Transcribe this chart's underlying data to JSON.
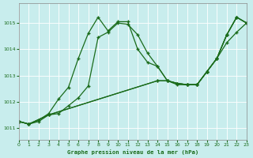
{
  "title": "Graphe pression niveau de la mer (hPa)",
  "bg_color": "#c8eded",
  "line_color": "#1a6b1a",
  "grid_color": "#b8d8d8",
  "xlim": [
    0,
    23
  ],
  "ylim": [
    1010.55,
    1015.75
  ],
  "yticks": [
    1011,
    1012,
    1013,
    1014,
    1015
  ],
  "xticks": [
    0,
    1,
    2,
    3,
    4,
    5,
    6,
    7,
    8,
    9,
    10,
    11,
    12,
    13,
    14,
    15,
    16,
    17,
    18,
    19,
    20,
    21,
    22,
    23
  ],
  "series": [
    {
      "x": [
        0,
        1,
        2,
        3,
        4,
        5,
        6,
        7,
        8,
        9,
        10,
        11,
        12,
        13,
        14,
        15,
        16,
        17,
        18,
        19,
        20,
        21,
        22,
        23
      ],
      "y": [
        1011.25,
        1011.15,
        1011.3,
        1011.55,
        1012.1,
        1012.55,
        1013.65,
        1014.6,
        1015.22,
        1014.7,
        1015.05,
        1015.05,
        1014.0,
        1013.5,
        1013.35,
        1012.8,
        1012.7,
        1012.65,
        1012.65,
        1013.15,
        1013.65,
        1014.55,
        1015.22,
        1015.0
      ]
    },
    {
      "x": [
        0,
        1,
        2,
        3,
        4,
        5,
        6,
        7,
        8,
        9,
        10,
        11,
        12,
        13,
        14,
        15,
        16,
        17,
        18,
        19,
        20,
        21,
        22,
        23
      ],
      "y": [
        1011.25,
        1011.15,
        1011.25,
        1011.5,
        1011.55,
        1011.85,
        1012.15,
        1012.6,
        1014.45,
        1014.65,
        1015.0,
        1014.95,
        1014.55,
        1013.85,
        1013.35,
        1012.8,
        1012.7,
        1012.65,
        1012.65,
        1013.15,
        1013.65,
        1014.55,
        1015.22,
        1015.0
      ]
    },
    {
      "x": [
        0,
        1,
        3,
        14,
        15,
        16,
        17,
        18,
        19,
        20,
        21,
        22,
        23
      ],
      "y": [
        1011.25,
        1011.15,
        1011.5,
        1012.8,
        1012.8,
        1012.7,
        1012.65,
        1012.65,
        1013.15,
        1013.65,
        1014.55,
        1015.22,
        1015.0
      ]
    },
    {
      "x": [
        0,
        1,
        3,
        14,
        15,
        16,
        17,
        18,
        19,
        20,
        21,
        22,
        23
      ],
      "y": [
        1011.25,
        1011.15,
        1011.5,
        1012.8,
        1012.8,
        1012.65,
        1012.65,
        1012.65,
        1013.15,
        1013.65,
        1014.25,
        1014.65,
        1015.0
      ]
    }
  ]
}
